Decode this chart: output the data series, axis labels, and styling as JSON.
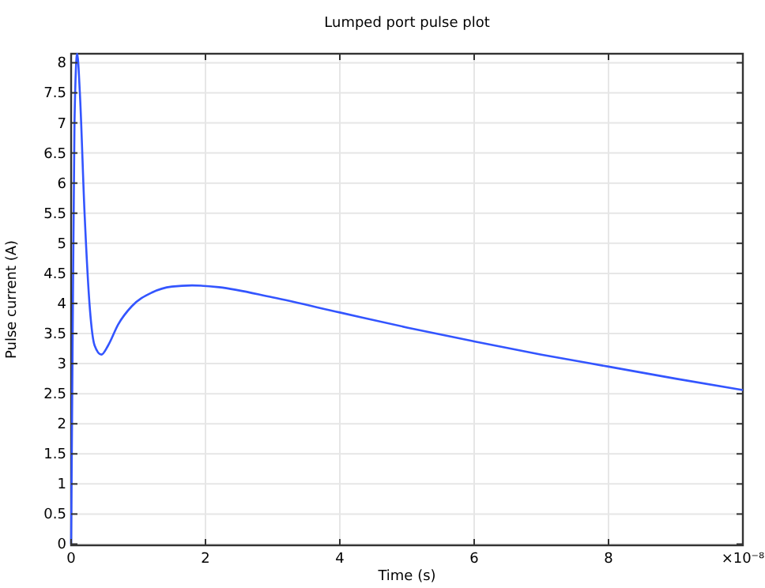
{
  "chart_data": {
    "type": "line",
    "title": "Lumped port pulse plot",
    "xlabel": "Time (s)",
    "ylabel": "Pulse current (A)",
    "x": [
      0,
      0.02,
      0.05,
      0.09,
      0.13,
      0.2,
      0.28,
      0.35,
      0.45,
      0.55,
      0.7,
      0.9,
      1.2,
      1.5,
      1.8,
      2.2,
      3,
      4,
      5,
      6,
      7,
      8,
      9,
      10
    ],
    "series": [
      {
        "color": "#3355ff",
        "values": [
          0,
          3,
          7,
          8.15,
          7.5,
          5.5,
          3.9,
          3.3,
          3.15,
          3.3,
          3.65,
          3.95,
          4.18,
          4.28,
          4.3,
          4.27,
          4.1,
          3.85,
          3.6,
          3.37,
          3.15,
          2.95,
          2.75,
          2.56
        ]
      }
    ],
    "xlim": [
      0,
      10
    ],
    "xticks": [
      0,
      2,
      4,
      6,
      8,
      {
        "value": 10,
        "label": "×10⁻⁸"
      }
    ],
    "ylim": [
      -0.02,
      8.15
    ],
    "yticks": [
      0,
      0.5,
      1,
      1.5,
      2,
      2.5,
      3,
      3.5,
      4,
      4.5,
      5,
      5.5,
      6,
      6.5,
      7,
      7.5,
      8
    ],
    "grid": true,
    "line_style": "solid"
  }
}
